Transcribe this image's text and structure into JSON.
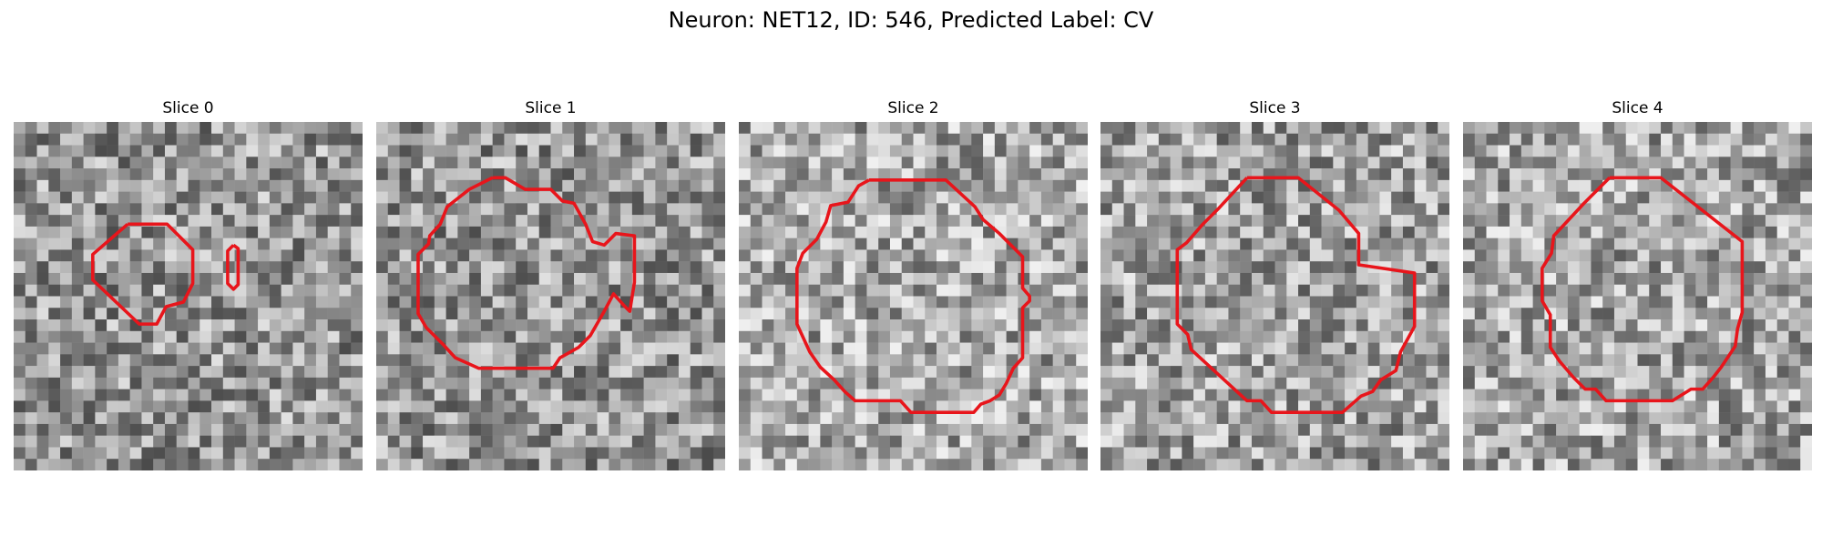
{
  "figure": {
    "title": "Neuron: NET12, ID: 546, Predicted Label: CV"
  },
  "panels": [
    {
      "title": "Slice 0",
      "image": "grayscale EM patch with red contour outlining a dark spot and a small vertical loop to its right"
    },
    {
      "title": "Slice 1",
      "image": "grayscale EM patch with red contour outlining a dark ring-shaped structure"
    },
    {
      "title": "Slice 2",
      "image": "grayscale EM patch with red polygonal contour around a bright round region"
    },
    {
      "title": "Slice 3",
      "image": "grayscale EM patch with red octagonal contour inside a dark circular membrane"
    },
    {
      "title": "Slice 4",
      "image": "grayscale EM patch with red dodecagonal contour around a round textured region"
    }
  ],
  "colors": {
    "contour": "#e8151b",
    "background": "#ffffff"
  }
}
